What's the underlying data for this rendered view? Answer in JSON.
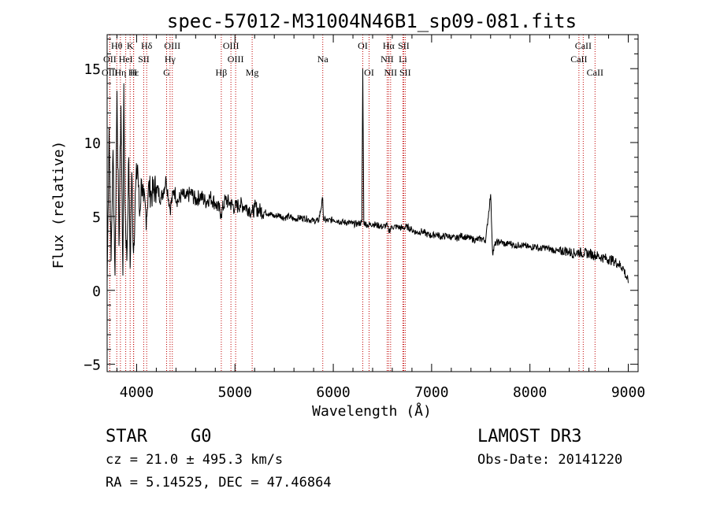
{
  "chart_data": {
    "type": "line",
    "title": "spec-57012-M31004N46B1_sp09-081.fits",
    "xlabel": "Wavelength (Å)",
    "ylabel": "Flux (relative)",
    "xlim": [
      3700,
      9100
    ],
    "ylim": [
      -5.5,
      17.3
    ],
    "xticks": [
      4000,
      5000,
      6000,
      7000,
      8000,
      9000
    ],
    "xtick_labels": [
      "4000",
      "5000",
      "6000",
      "7000",
      "8000",
      "9000"
    ],
    "yticks": [
      -5,
      0,
      5,
      10,
      15
    ],
    "ytick_labels": [
      "−5",
      "0",
      "5",
      "10",
      "15"
    ],
    "spectrum": {
      "x": [
        3700,
        3720,
        3740,
        3760,
        3780,
        3800,
        3820,
        3840,
        3860,
        3870,
        3880,
        3900,
        3920,
        3934,
        3950,
        3968,
        3990,
        4010,
        4030,
        4050,
        4070,
        4101,
        4120,
        4150,
        4200,
        4250,
        4300,
        4340,
        4380,
        4420,
        4460,
        4500,
        4550,
        4600,
        4650,
        4700,
        4750,
        4800,
        4861,
        4900,
        4950,
        5000,
        5050,
        5100,
        5150,
        5175,
        5200,
        5250,
        5300,
        5350,
        5400,
        5450,
        5500,
        5550,
        5600,
        5650,
        5700,
        5750,
        5800,
        5850,
        5893,
        5900,
        5950,
        6000,
        6050,
        6100,
        6150,
        6200,
        6250,
        6290,
        6300,
        6310,
        6350,
        6400,
        6450,
        6500,
        6550,
        6563,
        6600,
        6650,
        6700,
        6750,
        6800,
        6850,
        6900,
        6950,
        7000,
        7050,
        7100,
        7150,
        7200,
        7250,
        7300,
        7350,
        7400,
        7450,
        7500,
        7550,
        7600,
        7620,
        7650,
        7700,
        7750,
        7800,
        7850,
        7900,
        7950,
        8000,
        8050,
        8100,
        8150,
        8200,
        8250,
        8300,
        8350,
        8400,
        8450,
        8500,
        8550,
        8600,
        8650,
        8700,
        8750,
        8800,
        8850,
        8900,
        8950,
        9000
      ],
      "y": [
        0.5,
        11.0,
        2.0,
        9.5,
        1.0,
        13.5,
        3.0,
        12.5,
        1.0,
        14.0,
        6.0,
        2.0,
        9.0,
        1.5,
        8.0,
        2.5,
        7.0,
        8.5,
        5.0,
        7.5,
        6.0,
        5.0,
        7.0,
        6.5,
        7.0,
        6.2,
        7.5,
        5.5,
        6.8,
        6.0,
        6.5,
        6.2,
        6.6,
        6.1,
        6.4,
        6.0,
        6.3,
        5.9,
        5.2,
        6.1,
        5.9,
        5.6,
        5.8,
        5.7,
        5.5,
        5.2,
        5.6,
        5.4,
        5.3,
        5.2,
        5.0,
        5.1,
        4.9,
        5.0,
        4.8,
        4.9,
        4.9,
        4.8,
        4.7,
        4.7,
        6.2,
        4.8,
        4.7,
        4.8,
        4.7,
        4.6,
        4.6,
        4.5,
        4.5,
        4.6,
        15.0,
        4.6,
        4.4,
        4.5,
        4.4,
        4.3,
        4.4,
        4.0,
        4.3,
        4.3,
        4.2,
        4.3,
        4.1,
        3.9,
        4.0,
        3.8,
        3.7,
        3.8,
        3.6,
        3.7,
        3.6,
        3.5,
        3.7,
        3.6,
        3.5,
        3.4,
        3.5,
        3.4,
        6.5,
        2.5,
        3.2,
        3.3,
        3.1,
        3.2,
        3.0,
        3.1,
        3.0,
        2.9,
        3.0,
        2.8,
        2.9,
        2.8,
        2.7,
        2.6,
        2.7,
        2.6,
        2.5,
        2.6,
        2.5,
        2.5,
        2.4,
        2.3,
        2.2,
        2.1,
        2.0,
        1.8,
        1.5,
        0.5
      ]
    },
    "lines": [
      {
        "label": "Hθ",
        "wave": 3798,
        "row": 0
      },
      {
        "label": "OII",
        "wave": 3727,
        "row": 1
      },
      {
        "label": "OIII",
        "wave": 3727,
        "row": 2
      },
      {
        "label": "K",
        "wave": 3934,
        "row": 0
      },
      {
        "label": "HeI",
        "wave": 3889,
        "row": 1
      },
      {
        "label": "Hε",
        "wave": 3970,
        "row": 2
      },
      {
        "label": "Hη",
        "wave": 3835,
        "row": 2
      },
      {
        "label": "H",
        "wave": 3968,
        "row": 2
      },
      {
        "label": "SII",
        "wave": 4072,
        "row": 1
      },
      {
        "label": "Hδ",
        "wave": 4102,
        "row": 0
      },
      {
        "label": "OIII",
        "wave": 4363,
        "row": 0
      },
      {
        "label": "Hγ",
        "wave": 4340,
        "row": 1
      },
      {
        "label": "G",
        "wave": 4305,
        "row": 2
      },
      {
        "label": "Hβ",
        "wave": 4861,
        "row": 2
      },
      {
        "label": "OIII",
        "wave": 4959,
        "row": 0
      },
      {
        "label": "OIII",
        "wave": 5007,
        "row": 1
      },
      {
        "label": "Mg",
        "wave": 5175,
        "row": 2
      },
      {
        "label": "Na",
        "wave": 5893,
        "row": 1
      },
      {
        "label": "OI",
        "wave": 6300,
        "row": 0
      },
      {
        "label": "OI",
        "wave": 6364,
        "row": 2
      },
      {
        "label": "Hα",
        "wave": 6563,
        "row": 0
      },
      {
        "label": "SII",
        "wave": 6716,
        "row": 0
      },
      {
        "label": "NII",
        "wave": 6548,
        "row": 1
      },
      {
        "label": "Li",
        "wave": 6708,
        "row": 1
      },
      {
        "label": "NII",
        "wave": 6583,
        "row": 2
      },
      {
        "label": "SII",
        "wave": 6731,
        "row": 2
      },
      {
        "label": "CaII",
        "wave": 8542,
        "row": 0
      },
      {
        "label": "CaII",
        "wave": 8498,
        "row": 1
      },
      {
        "label": "CaII",
        "wave": 8662,
        "row": 2
      }
    ],
    "colors": {
      "spectrum": "#000000",
      "line_markers": "#c00000",
      "axes": "#000000"
    }
  },
  "info": {
    "object_class": "STAR",
    "subclass": "G0",
    "survey": "LAMOST DR3",
    "cz": "cz = 21.0 ± 495.3 km/s",
    "obs_date": "Obs-Date: 20141220",
    "coords": "RA =   5.14525, DEC =  47.46864"
  }
}
